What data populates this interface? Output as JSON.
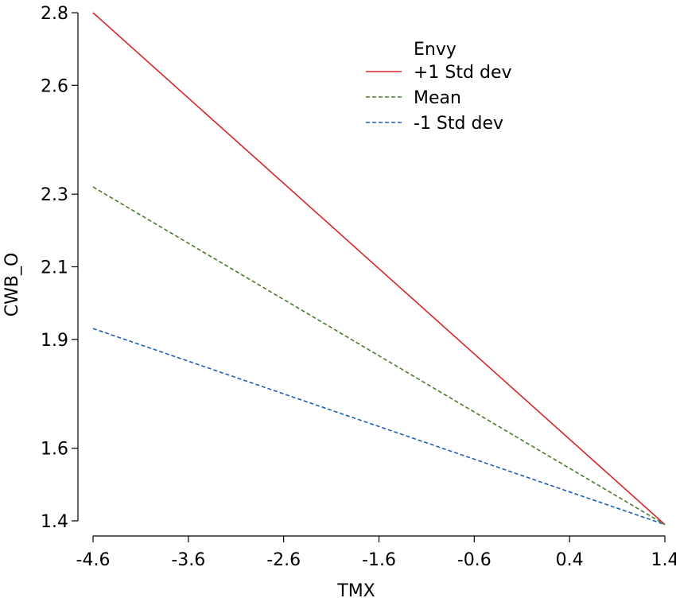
{
  "chart_data": {
    "type": "line",
    "xlabel": "TMX",
    "ylabel": "CWB_O",
    "x_ticks": [
      "-4.6",
      "-3.6",
      "-2.6",
      "-1.6",
      "-0.6",
      "0.4",
      "1.4"
    ],
    "y_ticks": [
      "1.4",
      "1.6",
      "1.9",
      "2.1",
      "2.3",
      "2.6",
      "2.8"
    ],
    "xlim": [
      -4.6,
      1.4
    ],
    "ylim": [
      1.4,
      2.8
    ],
    "grid": false,
    "legend_position": "top-center",
    "legend": {
      "title": "Envy"
    },
    "series": [
      {
        "name": "+1 Std dev",
        "color": "#d62728",
        "dash": "solid",
        "x": [
          -4.6,
          1.4
        ],
        "y": [
          2.8,
          1.39
        ]
      },
      {
        "name": "Mean",
        "color": "#4a7a2c",
        "dash": "dashed",
        "x": [
          -4.6,
          1.4
        ],
        "y": [
          2.32,
          1.39
        ]
      },
      {
        "name": "-1 Std dev",
        "color": "#1f5fb4",
        "dash": "dashed",
        "x": [
          -4.6,
          1.4
        ],
        "y": [
          1.93,
          1.39
        ]
      }
    ]
  }
}
